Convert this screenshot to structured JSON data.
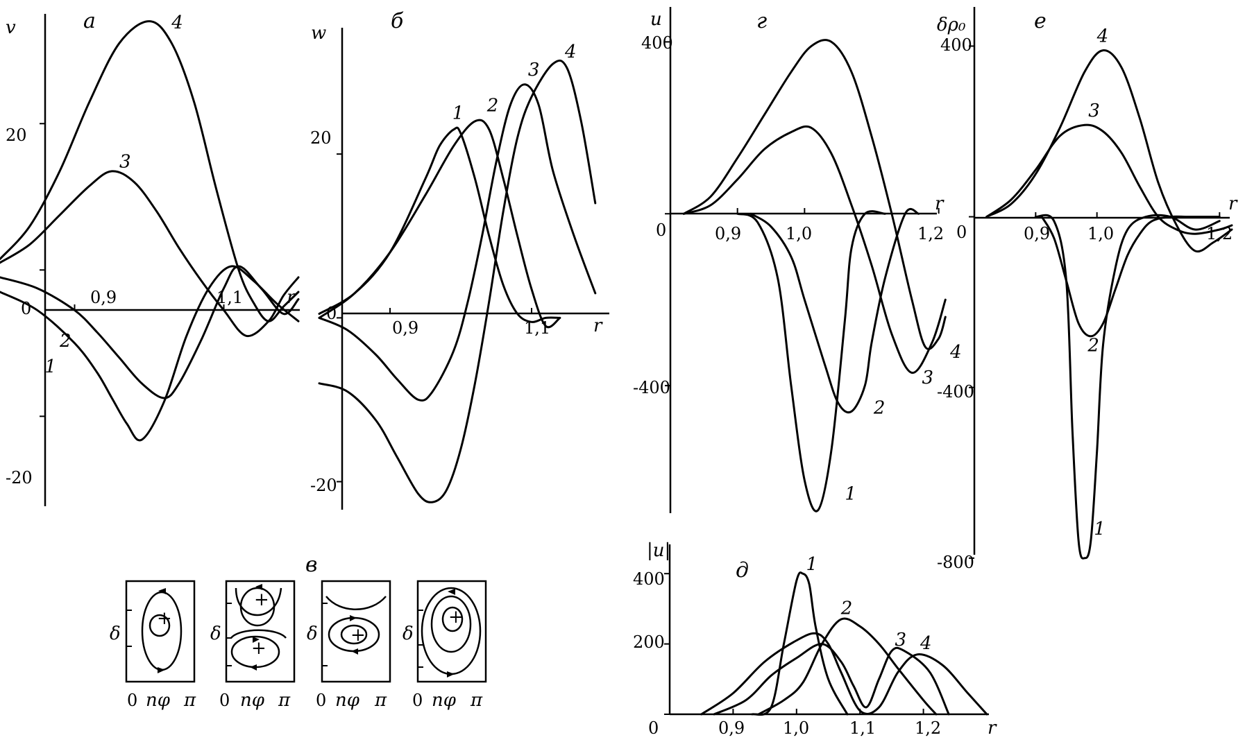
{
  "chart_data": [
    {
      "id": "a",
      "type": "line",
      "panel_label": "а",
      "xlabel": "r",
      "ylabel": "v",
      "x_ticks": [
        {
          "v": 0.9,
          "t": "0,9"
        },
        {
          "v": 1.1,
          "t": "1,1"
        }
      ],
      "y_ticks": [
        {
          "v": 20,
          "t": "20"
        },
        {
          "v": 0,
          "t": "0"
        },
        {
          "v": -20,
          "t": "-20"
        }
      ],
      "xlim": [
        0.8,
        1.2
      ],
      "ylim": [
        -23,
        35
      ],
      "series": [
        {
          "name": "1",
          "x": [
            0.8,
            0.85,
            0.9,
            0.93,
            0.95,
            0.97,
            0.99,
            1.02,
            1.05,
            1.08,
            1.11,
            1.14,
            1.17,
            1.2
          ],
          "y": [
            -3,
            -5.5,
            -10,
            -14,
            -17.5,
            -21,
            -23.2,
            -18,
            -9,
            -2.5,
            0.5,
            -1.5,
            -4.5,
            -7
          ]
        },
        {
          "name": "2",
          "x": [
            0.8,
            0.85,
            0.9,
            0.93,
            0.96,
            0.99,
            1.02,
            1.04,
            1.07,
            1.1,
            1.12,
            1.15,
            1.18,
            1.2
          ],
          "y": [
            -1,
            -2.5,
            -5.5,
            -8.5,
            -12,
            -15.5,
            -17.5,
            -15.5,
            -9.5,
            -2.5,
            0.5,
            -2.5,
            -6,
            -4
          ]
        },
        {
          "name": "3",
          "x": [
            0.8,
            0.84,
            0.88,
            0.92,
            0.95,
            0.98,
            1.01,
            1.04,
            1.07,
            1.1,
            1.13,
            1.16,
            1.18,
            1.2
          ],
          "y": [
            1,
            3.5,
            7.5,
            11.5,
            13.5,
            12,
            8,
            3,
            -1.5,
            -5.5,
            -9,
            -7,
            -3.5,
            -1
          ]
        },
        {
          "name": "4",
          "x": [
            0.8,
            0.84,
            0.88,
            0.92,
            0.96,
            1.0,
            1.03,
            1.06,
            1.09,
            1.12,
            1.14,
            1.16,
            1.18,
            1.2
          ],
          "y": [
            1.5,
            6,
            13.5,
            23,
            31,
            34,
            31,
            23,
            11,
            0,
            -4.5,
            -7,
            -5,
            -3
          ]
        }
      ],
      "labels": [
        {
          "t": "1",
          "x": 0.86,
          "y": -14
        },
        {
          "t": "2",
          "x": 0.88,
          "y": -10.5
        },
        {
          "t": "3",
          "x": 0.96,
          "y": 14
        },
        {
          "t": "4",
          "x": 1.03,
          "y": 33
        }
      ]
    },
    {
      "id": "b",
      "type": "line",
      "panel_label": "б",
      "xlabel": "r",
      "ylabel": "w",
      "x_ticks": [
        {
          "v": 0.9,
          "t": "0,9"
        },
        {
          "v": 1.1,
          "t": "1,1"
        }
      ],
      "y_ticks": [
        {
          "v": 20,
          "t": "20"
        },
        {
          "v": 0,
          "t": "0"
        },
        {
          "v": -20,
          "t": "-20"
        }
      ],
      "xlim": [
        0.8,
        1.2
      ],
      "ylim": [
        -23,
        35
      ],
      "series": [
        {
          "name": "1",
          "x": [
            0.8,
            0.85,
            0.9,
            0.95,
            0.97,
            0.99,
            1.0,
            1.02,
            1.04,
            1.06,
            1.08,
            1.1,
            1.12,
            1.14
          ],
          "y": [
            0.5,
            3,
            8,
            17,
            21,
            23,
            22.5,
            17,
            10,
            4,
            0.5,
            -0.5,
            0,
            0
          ]
        },
        {
          "name": "2",
          "x": [
            0.8,
            0.85,
            0.9,
            0.95,
            0.99,
            1.02,
            1.04,
            1.06,
            1.08,
            1.1,
            1.12,
            1.14
          ],
          "y": [
            0,
            3,
            8,
            15,
            21,
            24,
            23,
            17,
            10,
            3.5,
            -1,
            0
          ]
        },
        {
          "name": "3",
          "x": [
            0.8,
            0.84,
            0.88,
            0.91,
            0.94,
            0.96,
            0.99,
            1.01,
            1.03,
            1.05,
            1.07,
            1.09,
            1.11,
            1.13,
            1.16,
            1.19
          ],
          "y": [
            0,
            -1.5,
            -4.5,
            -7.5,
            -10,
            -9,
            -4,
            2,
            10,
            19,
            26,
            28.5,
            26,
            18,
            10,
            3
          ]
        },
        {
          "name": "4",
          "x": [
            0.8,
            0.84,
            0.88,
            0.91,
            0.94,
            0.96,
            0.98,
            1.0,
            1.02,
            1.04,
            1.06,
            1.08,
            1.1,
            1.13,
            1.15,
            1.17,
            1.19
          ],
          "y": [
            -8,
            -9,
            -12.5,
            -17,
            -21.5,
            -22.5,
            -21,
            -16,
            -8,
            2,
            13,
            22,
            27,
            31,
            30.5,
            24,
            14
          ]
        }
      ],
      "labels": [
        {
          "t": "1",
          "x": 0.988,
          "y": 24.3
        },
        {
          "t": "2",
          "x": 1.037,
          "y": 25.2
        },
        {
          "t": "3",
          "x": 1.095,
          "y": 29.6
        },
        {
          "t": "4",
          "x": 1.147,
          "y": 31.8
        }
      ]
    },
    {
      "id": "g",
      "type": "line",
      "panel_label": "г",
      "xlabel": "r",
      "ylabel": "u",
      "x_ticks": [
        {
          "v": 0.9,
          "t": "0,9"
        },
        {
          "v": 1.0,
          "t": "1,0"
        },
        {
          "v": 1.2,
          "t": "1,2"
        }
      ],
      "y_ticks": [
        {
          "v": 400,
          "t": "400"
        },
        {
          "v": 0,
          "t": "0"
        },
        {
          "v": -400,
          "t": "-400"
        }
      ],
      "xlim": [
        0.8,
        1.22
      ],
      "ylim": [
        -700,
        420
      ],
      "series": [
        {
          "name": "1",
          "x": [
            0.9,
            0.93,
            0.96,
            0.98,
            1.0,
            1.02,
            1.04,
            1.06,
            1.07,
            1.09,
            1.12
          ],
          "y": [
            0,
            -20,
            -150,
            -400,
            -620,
            -690,
            -550,
            -250,
            -80,
            0,
            0
          ]
        },
        {
          "name": "2",
          "x": [
            0.92,
            0.95,
            0.98,
            1.0,
            1.03,
            1.05,
            1.07,
            1.09,
            1.1,
            1.12,
            1.15,
            1.17
          ],
          "y": [
            0,
            -30,
            -100,
            -200,
            -350,
            -440,
            -460,
            -400,
            -300,
            -150,
            0,
            0
          ]
        },
        {
          "name": "3",
          "x": [
            0.82,
            0.86,
            0.9,
            0.94,
            0.98,
            1.01,
            1.04,
            1.07,
            1.1,
            1.13,
            1.16,
            1.19,
            1.21
          ],
          "y": [
            0,
            20,
            80,
            150,
            190,
            200,
            140,
            20,
            -120,
            -280,
            -370,
            -300,
            -200
          ]
        },
        {
          "name": "4",
          "x": [
            0.82,
            0.86,
            0.9,
            0.94,
            0.98,
            1.01,
            1.04,
            1.07,
            1.1,
            1.13,
            1.16,
            1.18,
            1.2,
            1.21
          ],
          "y": [
            0,
            40,
            130,
            230,
            330,
            390,
            400,
            330,
            180,
            0,
            -200,
            -310,
            -290,
            -240
          ]
        }
      ],
      "labels": [
        {
          "t": "1",
          "x": 1.06,
          "y": -665
        },
        {
          "t": "2",
          "x": 1.103,
          "y": -465
        },
        {
          "t": "3",
          "x": 1.175,
          "y": -395
        },
        {
          "t": "4",
          "x": 1.217,
          "y": -335
        }
      ]
    },
    {
      "id": "e",
      "type": "line",
      "panel_label": "е",
      "xlabel": "r",
      "ylabel": "δρ₀",
      "x_ticks": [
        {
          "v": 0.9,
          "t": "0,9"
        },
        {
          "v": 1.0,
          "t": "1,0"
        },
        {
          "v": 1.2,
          "t": "1,2"
        }
      ],
      "y_ticks": [
        {
          "v": 400,
          "t": "400"
        },
        {
          "v": 0,
          "t": "0"
        },
        {
          "v": -400,
          "t": "-400"
        },
        {
          "v": -800,
          "t": "-800"
        }
      ],
      "xlim": [
        0.8,
        1.22
      ],
      "ylim": [
        -810,
        430
      ],
      "series": [
        {
          "name": "1",
          "x": [
            0.9,
            0.93,
            0.95,
            0.96,
            0.97,
            0.98,
            0.99,
            1.0,
            1.01,
            1.03,
            1.05,
            1.08,
            1.12,
            1.16,
            1.2
          ],
          "y": [
            0,
            -10,
            -150,
            -500,
            -760,
            -800,
            -760,
            -550,
            -300,
            -120,
            -30,
            0,
            0,
            -30,
            -10
          ]
        },
        {
          "name": "2",
          "x": [
            0.91,
            0.93,
            0.95,
            0.97,
            0.99,
            1.01,
            1.03,
            1.05,
            1.07,
            1.09,
            1.12,
            1.15,
            1.2
          ],
          "y": [
            0,
            -50,
            -150,
            -250,
            -280,
            -250,
            -170,
            -90,
            -40,
            -10,
            0,
            0,
            0
          ]
        },
        {
          "name": "3",
          "x": [
            0.82,
            0.86,
            0.9,
            0.94,
            0.98,
            1.01,
            1.04,
            1.07,
            1.1,
            1.13,
            1.16,
            1.2,
            1.22
          ],
          "y": [
            0,
            40,
            110,
            190,
            215,
            200,
            150,
            70,
            0,
            -30,
            -40,
            -30,
            -20
          ]
        },
        {
          "name": "4",
          "x": [
            0.82,
            0.86,
            0.9,
            0.94,
            0.98,
            1.01,
            1.04,
            1.07,
            1.1,
            1.13,
            1.16,
            1.19,
            1.22
          ],
          "y": [
            0,
            30,
            100,
            210,
            340,
            390,
            350,
            230,
            80,
            -20,
            -80,
            -60,
            -30
          ]
        }
      ],
      "labels": [
        {
          "t": "1",
          "x": 0.995,
          "y": -745
        },
        {
          "t": "2",
          "x": 0.985,
          "y": -315
        },
        {
          "t": "3",
          "x": 0.986,
          "y": 235
        },
        {
          "t": "4",
          "x": 1.0,
          "y": 410
        }
      ]
    },
    {
      "id": "d",
      "type": "line",
      "panel_label": "д",
      "xlabel": "r",
      "ylabel": "|u|",
      "x_ticks": [
        {
          "v": 0.9,
          "t": "0,9"
        },
        {
          "v": 1.0,
          "t": "1,0"
        },
        {
          "v": 1.1,
          "t": "1,1"
        },
        {
          "v": 1.2,
          "t": "1,2"
        }
      ],
      "y_ticks": [
        {
          "v": 400,
          "t": "400"
        },
        {
          "v": 200,
          "t": "200"
        },
        {
          "v": 0,
          "t": "0"
        }
      ],
      "xlim": [
        0.8,
        1.3
      ],
      "ylim": [
        0,
        430
      ],
      "series": [
        {
          "name": "1",
          "x": [
            0.93,
            0.96,
            0.98,
            1.0,
            1.01,
            1.02,
            1.03,
            1.05,
            1.08
          ],
          "y": [
            0,
            20,
            200,
            380,
            400,
            370,
            250,
            100,
            0
          ]
        },
        {
          "name": "2",
          "x": [
            0.94,
            0.98,
            1.01,
            1.04,
            1.07,
            1.1,
            1.13,
            1.16,
            1.2,
            1.22
          ],
          "y": [
            0,
            40,
            90,
            200,
            270,
            250,
            200,
            130,
            40,
            0
          ]
        },
        {
          "name": "3",
          "x": [
            0.87,
            0.92,
            0.96,
            1.0,
            1.04,
            1.07,
            1.09,
            1.11,
            1.13,
            1.15,
            1.17,
            1.21,
            1.24
          ],
          "y": [
            0,
            40,
            110,
            160,
            200,
            150,
            80,
            20,
            100,
            180,
            180,
            120,
            0
          ]
        },
        {
          "name": "4",
          "x": [
            0.85,
            0.9,
            0.95,
            1.0,
            1.03,
            1.05,
            1.07,
            1.1,
            1.13,
            1.16,
            1.19,
            1.23,
            1.27,
            1.3
          ],
          "y": [
            0,
            60,
            150,
            210,
            230,
            200,
            120,
            10,
            20,
            120,
            170,
            140,
            60,
            0
          ]
        }
      ],
      "labels": [
        {
          "t": "1",
          "x": 1.015,
          "y": 410
        },
        {
          "t": "2",
          "x": 1.07,
          "y": 285
        },
        {
          "t": "3",
          "x": 1.155,
          "y": 195
        },
        {
          "t": "4",
          "x": 1.195,
          "y": 185
        }
      ]
    }
  ],
  "inset": {
    "panel_label": "в",
    "ylabel": "δ",
    "x_tick_labels": [
      "0",
      "nφ",
      "π"
    ]
  }
}
